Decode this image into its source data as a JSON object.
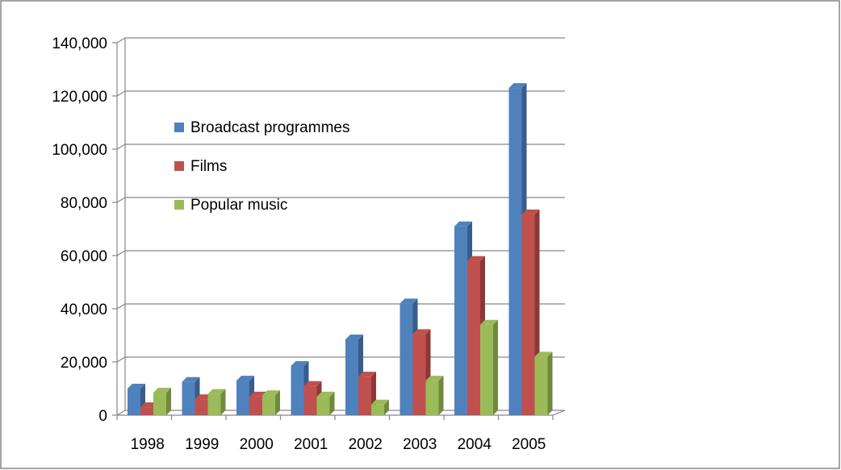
{
  "chart_data": {
    "type": "bar3d",
    "categories": [
      "1998",
      "1999",
      "2000",
      "2001",
      "2002",
      "2003",
      "2004",
      "2005"
    ],
    "series": [
      {
        "name": "Broadcast programmes",
        "color": "#4f81bd",
        "side": "#385d8a",
        "values": [
          10000,
          12500,
          13000,
          18500,
          28500,
          42000,
          71000,
          123000
        ]
      },
      {
        "name": "Films",
        "color": "#c0504d",
        "side": "#8c3836",
        "values": [
          3000,
          6000,
          7000,
          11000,
          14500,
          30500,
          58000,
          75500
        ]
      },
      {
        "name": "Popular music",
        "color": "#9bbb59",
        "side": "#71893f",
        "values": [
          8500,
          8000,
          7500,
          7000,
          4000,
          13000,
          34000,
          22000
        ]
      }
    ],
    "ylim": [
      0,
      140000
    ],
    "yticks": [
      0,
      {
        "value": 20000,
        "label": "20,000"
      },
      {
        "value": 40000,
        "label": "40,000"
      },
      {
        "value": 60000,
        "label": "60,000"
      },
      {
        "value": 80000,
        "label": "80,000"
      },
      {
        "value": 100000,
        "label": "100,000"
      },
      {
        "value": 120000,
        "label": "120,000"
      },
      {
        "value": 140000,
        "label": "140,000"
      }
    ],
    "grid": true,
    "legend": "upper-left"
  }
}
